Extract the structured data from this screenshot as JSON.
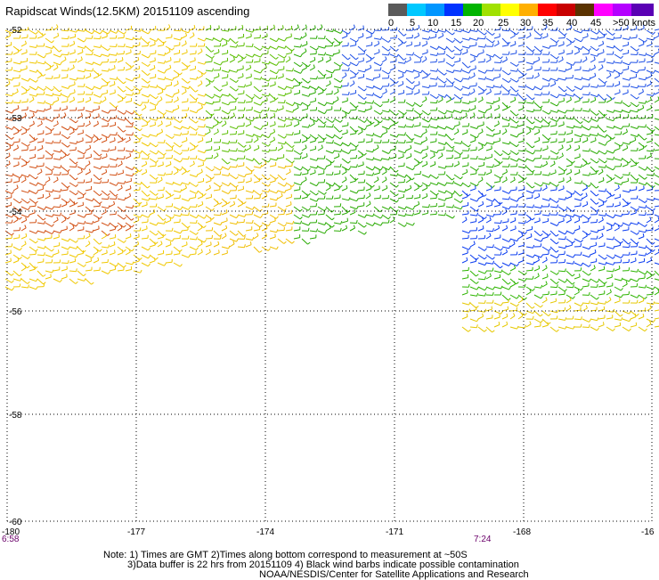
{
  "title": "Rapidscat Winds(12.5KM) 20151109 ascending",
  "legend": {
    "colors": [
      "#5a5a5a",
      "#00c8ff",
      "#0096ff",
      "#0032ff",
      "#00b400",
      "#a0e100",
      "#ffff00",
      "#ffaf00",
      "#ff0000",
      "#c80000",
      "#5a3200",
      "#ff00ff",
      "#b400ff",
      "#5a00b4"
    ],
    "labels": [
      "0",
      "5",
      "10",
      "15",
      "20",
      "25",
      "30",
      "35",
      "40",
      "45",
      ">50 knots"
    ]
  },
  "axes": {
    "lat_labels": [
      "-52",
      "-53",
      "-54",
      "-56",
      "-58",
      "-60"
    ],
    "lon_labels": [
      "-180",
      "-177",
      "-174",
      "-171",
      "-168",
      "-16"
    ]
  },
  "times": [
    "6:58",
    "7:24"
  ],
  "notes": [
    "Note: 1) Times are GMT 2)Times along bottom correspond to measurement at ~50S",
    "3)Data buffer is 22 hrs from 20151109 4) Black wind barbs indicate possible contamination",
    "NOAA/NESDIS/Center for Satellite Applications and Research"
  ]
}
